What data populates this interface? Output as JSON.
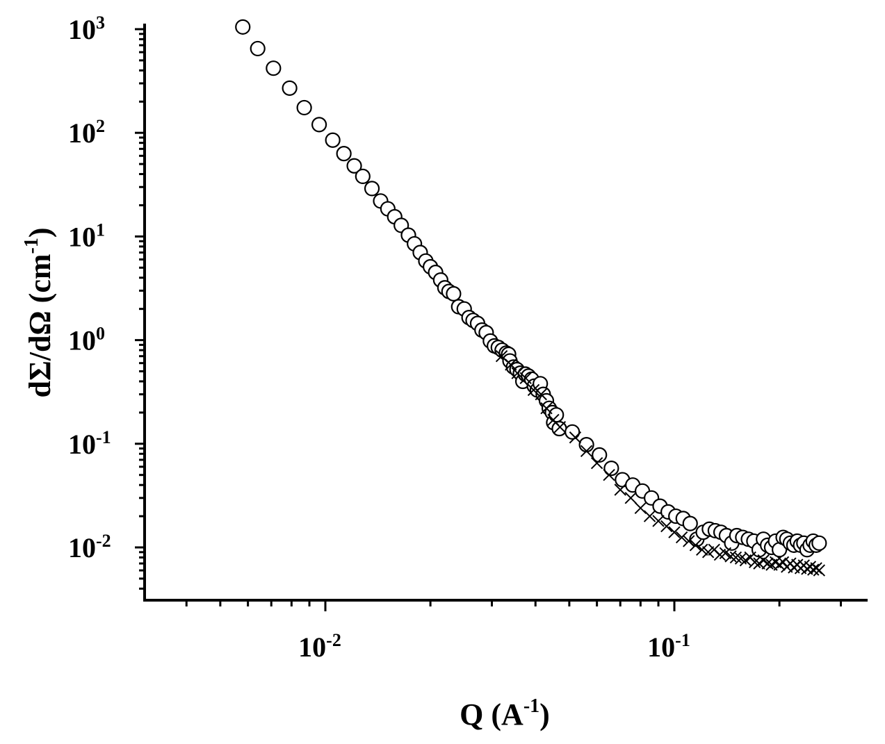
{
  "chart_data": {
    "type": "scatter",
    "title": "",
    "xlabel": {
      "base": "Q (A",
      "exponent": "-1",
      "suffix": ")"
    },
    "ylabel": {
      "base": "dΣ/dΩ (cm",
      "exponent": "-1",
      "suffix": ")"
    },
    "x_scale": "log",
    "y_scale": "log",
    "xlim": [
      0.003,
      0.34
    ],
    "ylim": [
      0.003,
      1300
    ],
    "grid": false,
    "legend": "none",
    "x_ticks": [
      {
        "value": 0.01,
        "base": "10",
        "exponent": "-2"
      },
      {
        "value": 0.1,
        "base": "10",
        "exponent": "-1"
      }
    ],
    "y_ticks": [
      {
        "value": 0.01,
        "base": "10",
        "exponent": "-2"
      },
      {
        "value": 0.1,
        "base": "10",
        "exponent": "-1"
      },
      {
        "value": 1,
        "base": "10",
        "exponent": "0"
      },
      {
        "value": 10,
        "base": "10",
        "exponent": "1"
      },
      {
        "value": 100,
        "base": "10",
        "exponent": "2"
      },
      {
        "value": 1000,
        "base": "10",
        "exponent": "3"
      }
    ],
    "series": [
      {
        "marker": "open-circle",
        "color": "#000000",
        "points": [
          [
            0.0058,
            1050
          ],
          [
            0.0064,
            650
          ],
          [
            0.0071,
            420
          ],
          [
            0.0079,
            270
          ],
          [
            0.0087,
            175
          ],
          [
            0.0096,
            120
          ],
          [
            0.0105,
            85
          ],
          [
            0.0113,
            63
          ],
          [
            0.0121,
            48
          ],
          [
            0.0128,
            38
          ],
          [
            0.0136,
            29
          ],
          [
            0.0144,
            22
          ],
          [
            0.0151,
            18.5
          ],
          [
            0.0158,
            15.5
          ],
          [
            0.0165,
            12.8
          ],
          [
            0.0173,
            10.3
          ],
          [
            0.018,
            8.5
          ],
          [
            0.0187,
            7.0
          ],
          [
            0.0194,
            5.8
          ],
          [
            0.02,
            5.1
          ],
          [
            0.0207,
            4.5
          ],
          [
            0.0214,
            3.8
          ],
          [
            0.022,
            3.2
          ],
          [
            0.0226,
            2.95
          ],
          [
            0.0233,
            2.8
          ],
          [
            0.0241,
            2.1
          ],
          [
            0.025,
            2.0
          ],
          [
            0.0258,
            1.65
          ],
          [
            0.0265,
            1.55
          ],
          [
            0.0273,
            1.45
          ],
          [
            0.0281,
            1.25
          ],
          [
            0.0289,
            1.18
          ],
          [
            0.0297,
            0.98
          ],
          [
            0.0305,
            0.88
          ],
          [
            0.0313,
            0.85
          ],
          [
            0.0321,
            0.8
          ],
          [
            0.033,
            0.75
          ],
          [
            0.0335,
            0.73
          ],
          [
            0.0338,
            0.63
          ],
          [
            0.0346,
            0.55
          ],
          [
            0.0354,
            0.52
          ],
          [
            0.0362,
            0.48
          ],
          [
            0.0368,
            0.4
          ],
          [
            0.0374,
            0.47
          ],
          [
            0.0382,
            0.45
          ],
          [
            0.039,
            0.42
          ],
          [
            0.0397,
            0.36
          ],
          [
            0.0405,
            0.33
          ],
          [
            0.0413,
            0.38
          ],
          [
            0.0421,
            0.3
          ],
          [
            0.043,
            0.26
          ],
          [
            0.0438,
            0.22
          ],
          [
            0.0447,
            0.2
          ],
          [
            0.0451,
            0.16
          ],
          [
            0.0459,
            0.19
          ],
          [
            0.0468,
            0.14
          ],
          [
            0.051,
            0.13
          ],
          [
            0.056,
            0.098
          ],
          [
            0.061,
            0.078
          ],
          [
            0.066,
            0.058
          ],
          [
            0.071,
            0.045
          ],
          [
            0.076,
            0.04
          ],
          [
            0.081,
            0.035
          ],
          [
            0.086,
            0.03
          ],
          [
            0.091,
            0.025
          ],
          [
            0.096,
            0.022
          ],
          [
            0.101,
            0.02
          ],
          [
            0.106,
            0.019
          ],
          [
            0.111,
            0.017
          ],
          [
            0.116,
            0.012
          ],
          [
            0.121,
            0.014
          ],
          [
            0.126,
            0.015
          ],
          [
            0.131,
            0.0145
          ],
          [
            0.136,
            0.014
          ],
          [
            0.141,
            0.013
          ],
          [
            0.146,
            0.011
          ],
          [
            0.151,
            0.013
          ],
          [
            0.157,
            0.0125
          ],
          [
            0.163,
            0.012
          ],
          [
            0.169,
            0.0115
          ],
          [
            0.175,
            0.0095
          ],
          [
            0.18,
            0.012
          ],
          [
            0.185,
            0.0105
          ],
          [
            0.19,
            0.01
          ],
          [
            0.195,
            0.0115
          ],
          [
            0.2,
            0.0095
          ],
          [
            0.205,
            0.0125
          ],
          [
            0.21,
            0.012
          ],
          [
            0.215,
            0.011
          ],
          [
            0.22,
            0.0105
          ],
          [
            0.225,
            0.0115
          ],
          [
            0.23,
            0.0105
          ],
          [
            0.235,
            0.011
          ],
          [
            0.24,
            0.0095
          ],
          [
            0.245,
            0.0105
          ],
          [
            0.25,
            0.0115
          ],
          [
            0.255,
            0.0105
          ],
          [
            0.26,
            0.011
          ]
        ]
      },
      {
        "marker": "x-cross",
        "color": "#000000",
        "points": [
          [
            0.032,
            0.7
          ],
          [
            0.034,
            0.58
          ],
          [
            0.0355,
            0.48
          ],
          [
            0.0375,
            0.43
          ],
          [
            0.0395,
            0.33
          ],
          [
            0.0415,
            0.3
          ],
          [
            0.043,
            0.22
          ],
          [
            0.045,
            0.17
          ],
          [
            0.047,
            0.145
          ],
          [
            0.052,
            0.115
          ],
          [
            0.056,
            0.085
          ],
          [
            0.06,
            0.065
          ],
          [
            0.065,
            0.05
          ],
          [
            0.07,
            0.036
          ],
          [
            0.075,
            0.03
          ],
          [
            0.08,
            0.024
          ],
          [
            0.085,
            0.02
          ],
          [
            0.09,
            0.018
          ],
          [
            0.095,
            0.016
          ],
          [
            0.1,
            0.014
          ],
          [
            0.105,
            0.0125
          ],
          [
            0.11,
            0.0115
          ],
          [
            0.115,
            0.0105
          ],
          [
            0.12,
            0.0095
          ],
          [
            0.125,
            0.009
          ],
          [
            0.13,
            0.0095
          ],
          [
            0.135,
            0.0085
          ],
          [
            0.14,
            0.0088
          ],
          [
            0.145,
            0.0082
          ],
          [
            0.15,
            0.008
          ],
          [
            0.155,
            0.0078
          ],
          [
            0.16,
            0.0075
          ],
          [
            0.165,
            0.008
          ],
          [
            0.17,
            0.0072
          ],
          [
            0.175,
            0.007
          ],
          [
            0.18,
            0.0075
          ],
          [
            0.185,
            0.007
          ],
          [
            0.19,
            0.0068
          ],
          [
            0.195,
            0.0072
          ],
          [
            0.2,
            0.0068
          ],
          [
            0.205,
            0.0072
          ],
          [
            0.21,
            0.0065
          ],
          [
            0.215,
            0.007
          ],
          [
            0.22,
            0.0064
          ],
          [
            0.225,
            0.0068
          ],
          [
            0.23,
            0.0063
          ],
          [
            0.235,
            0.0067
          ],
          [
            0.24,
            0.0062
          ],
          [
            0.245,
            0.0065
          ],
          [
            0.25,
            0.0061
          ],
          [
            0.255,
            0.0063
          ],
          [
            0.26,
            0.006
          ]
        ]
      }
    ]
  }
}
